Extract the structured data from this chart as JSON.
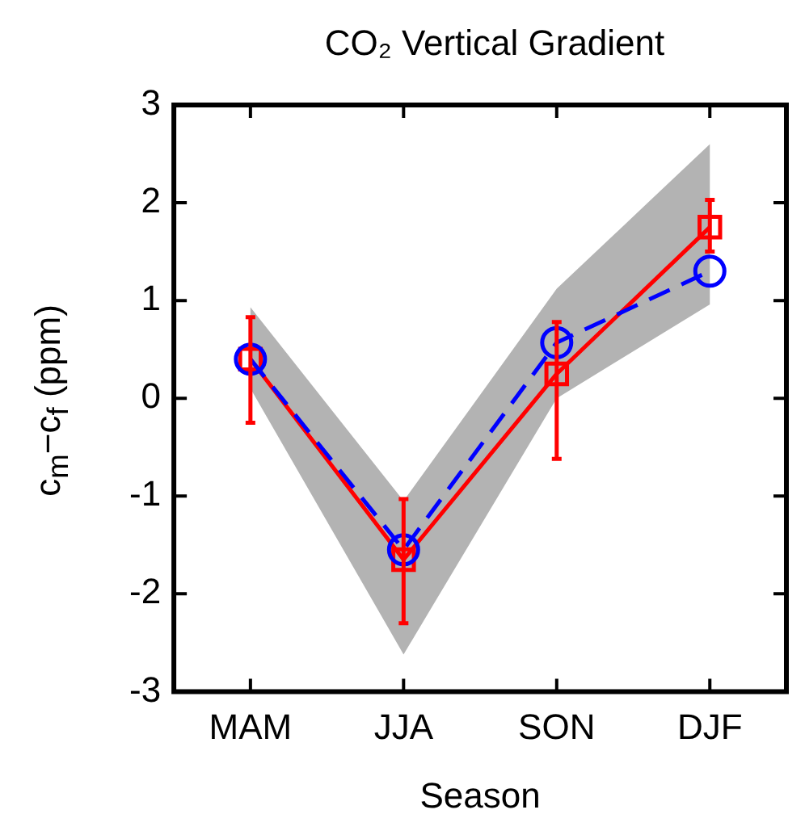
{
  "chart_data": {
    "type": "line",
    "title": "CO₂ Vertical Gradient",
    "xlabel": "Season",
    "ylabel": "c$_{m}$−c$_{f}$ (ppm)",
    "categories": [
      "MAM",
      "JJA",
      "SON",
      "DJF"
    ],
    "series": [
      {
        "color": "#0000ff",
        "values": [
          0.4,
          -1.55,
          0.57,
          1.3
        ],
        "lower": [
          0.1,
          -2.62,
          0.0,
          0.96
        ],
        "upper": [
          0.93,
          -1.05,
          1.12,
          2.6
        ],
        "marker": "circle",
        "line_style": "dashed"
      },
      {
        "color": "#ff0000",
        "values": [
          0.4,
          -1.65,
          0.25,
          1.75
        ],
        "errors": [
          [
            -0.25,
            0.83
          ],
          [
            -2.3,
            -1.03
          ],
          [
            -0.62,
            0.78
          ],
          [
            1.5,
            2.03
          ]
        ],
        "marker": "square",
        "line_style": "solid"
      }
    ],
    "ylim": [
      -3,
      3
    ],
    "yticks": [
      -3,
      -2,
      -1,
      0,
      1,
      2,
      3
    ],
    "grid": false,
    "legend": false
  }
}
